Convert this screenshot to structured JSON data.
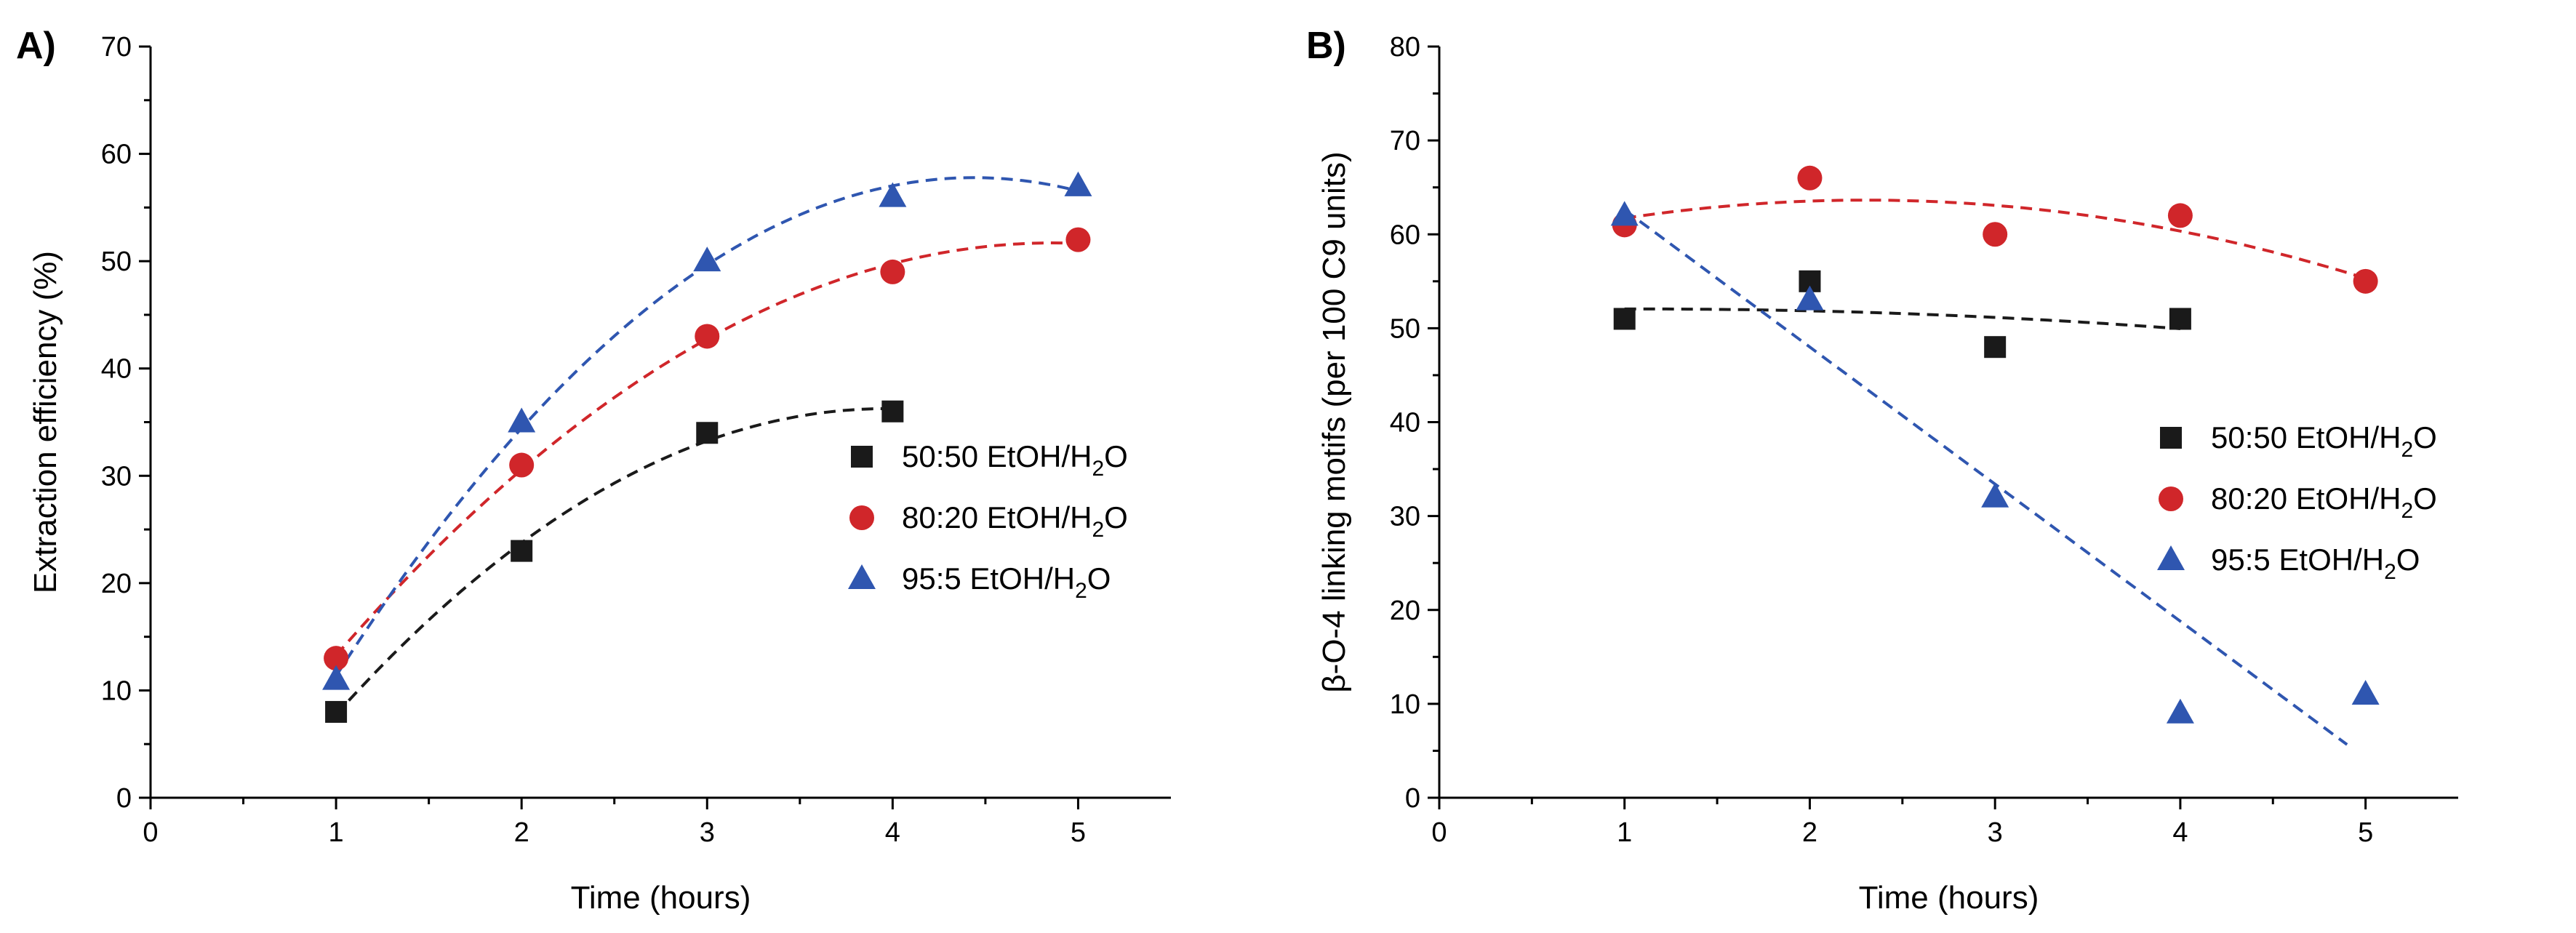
{
  "chart_data": [
    {
      "type": "scatter",
      "panel_label": "A)",
      "xlabel": "Time (hours)",
      "ylabel": "Extraction efficiency (%)",
      "xlim": [
        0,
        5.5
      ],
      "ylim": [
        0,
        70
      ],
      "xticks": [
        0,
        1,
        2,
        3,
        4,
        5
      ],
      "yticks": [
        0,
        10,
        20,
        30,
        40,
        50,
        60,
        70
      ],
      "legend_position": "center-right",
      "series": [
        {
          "name": "50:50 EtOH/H2O",
          "legend_main": "50:50 EtOH/H",
          "legend_sub": "2",
          "legend_tail": "O",
          "marker": "square",
          "color": "#1a1a1a",
          "x": [
            1,
            2,
            3,
            4
          ],
          "y": [
            8,
            23,
            34,
            36
          ],
          "fit": "quadratic",
          "fit_range": [
            1,
            4
          ]
        },
        {
          "name": "80:20 EtOH/H2O",
          "legend_main": "80:20 EtOH/H",
          "legend_sub": "2",
          "legend_tail": "O",
          "marker": "circle",
          "color": "#d0262a",
          "x": [
            1,
            2,
            3,
            4,
            5
          ],
          "y": [
            13,
            31,
            43,
            49,
            52
          ],
          "fit": "quadratic",
          "fit_range": [
            1,
            5
          ]
        },
        {
          "name": "95:5 EtOH/H2O",
          "legend_main": "95:5   EtOH/H",
          "legend_sub": "2",
          "legend_tail": "O",
          "marker": "triangle",
          "color": "#2f56b0",
          "x": [
            1,
            2,
            3,
            4,
            5
          ],
          "y": [
            11,
            35,
            50,
            56,
            57
          ],
          "fit": "quadratic",
          "fit_range": [
            1,
            5
          ]
        }
      ]
    },
    {
      "type": "scatter",
      "panel_label": "B)",
      "xlabel": "Time (hours)",
      "ylabel": "β-O-4 linking motifs (per 100 C9 units)",
      "xlim": [
        0,
        5.5
      ],
      "ylim": [
        0,
        80
      ],
      "xticks": [
        0,
        1,
        2,
        3,
        4,
        5
      ],
      "yticks": [
        0,
        10,
        20,
        30,
        40,
        50,
        60,
        70,
        80
      ],
      "legend_position": "center-right",
      "series": [
        {
          "name": "50:50 EtOH/H2O",
          "legend_main": "50:50 EtOH/H",
          "legend_sub": "2",
          "legend_tail": "O",
          "marker": "square",
          "color": "#1a1a1a",
          "x": [
            1,
            2,
            3,
            4
          ],
          "y": [
            51,
            55,
            48,
            51
          ],
          "fit": "quadratic",
          "fit_range": [
            1,
            4
          ]
        },
        {
          "name": "80:20 EtOH/H2O",
          "legend_main": "80:20 EtOH/H",
          "legend_sub": "2",
          "legend_tail": "O",
          "marker": "circle",
          "color": "#d0262a",
          "x": [
            1,
            2,
            3,
            4,
            5
          ],
          "y": [
            61,
            66,
            60,
            62,
            55
          ],
          "fit": "quadratic",
          "fit_range": [
            1,
            5
          ]
        },
        {
          "name": "95:5 EtOH/H2O",
          "legend_main": "95:5   EtOH/H",
          "legend_sub": "2",
          "legend_tail": "O",
          "marker": "triangle",
          "color": "#2f56b0",
          "x": [
            1,
            2,
            3,
            4,
            5
          ],
          "y": [
            62,
            53,
            32,
            9,
            11
          ],
          "fit": "linear",
          "fit_range": [
            1,
            4.9
          ]
        }
      ]
    }
  ]
}
